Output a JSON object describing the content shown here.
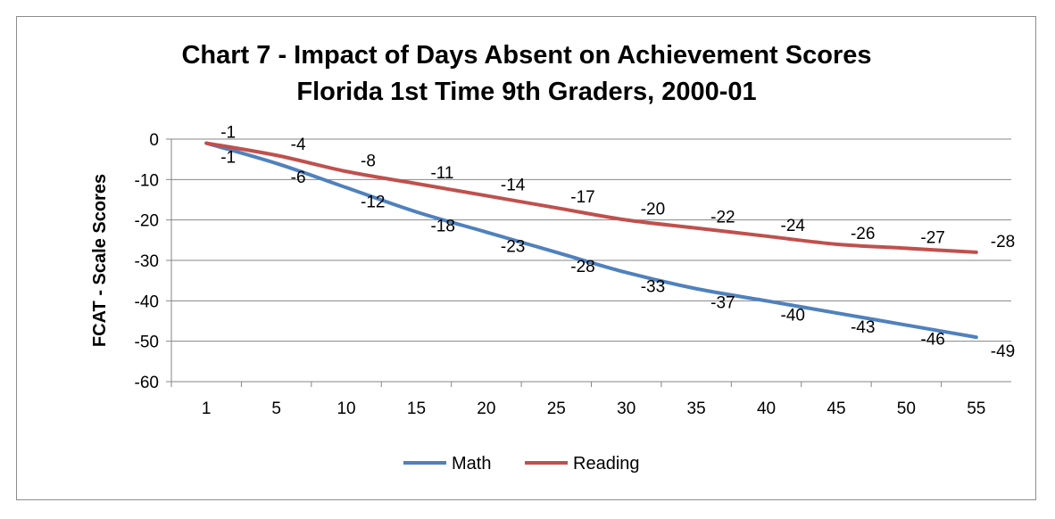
{
  "chart_data": {
    "type": "line",
    "title": [
      "Chart 7 - Impact of Days  Absent on Achievement Scores",
      "Florida 1st Time 9th Graders, 2000-01"
    ],
    "xlabel": "",
    "ylabel": "FCAT - Scale Scores",
    "categories": [
      "1",
      "5",
      "10",
      "15",
      "20",
      "25",
      "30",
      "35",
      "40",
      "45",
      "50",
      "55"
    ],
    "ylim": [
      -60,
      0
    ],
    "yticks": [
      "0",
      "-10",
      "-20",
      "-30",
      "-40",
      "-50",
      "-60"
    ],
    "grid": true,
    "legend": "bottom",
    "series": [
      {
        "name": "Math",
        "color": "#4f81bd",
        "values": [
          -1,
          -6,
          -12,
          -18,
          -23,
          -28,
          -33,
          -37,
          -40,
          -43,
          -46,
          -49
        ]
      },
      {
        "name": "Reading",
        "color": "#c0504d",
        "values": [
          -1,
          -4,
          -8,
          -11,
          -14,
          -17,
          -20,
          -22,
          -24,
          -26,
          -27,
          -28
        ]
      }
    ]
  }
}
